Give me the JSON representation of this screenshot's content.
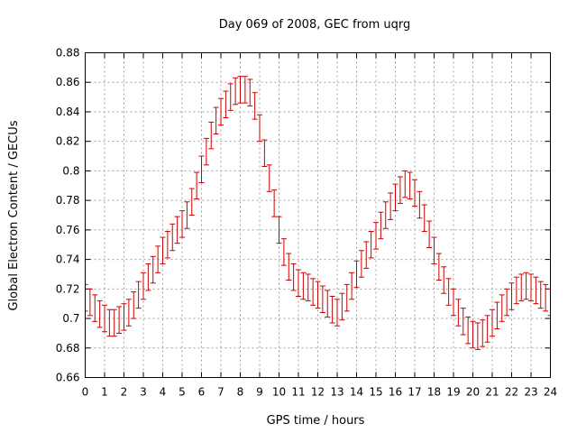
{
  "chart_data": {
    "type": "scatter",
    "title": "Day 069 of 2008, GEC from uqrg",
    "xlabel": "GPS time / hours",
    "ylabel": "Global Electron Content / GECUs",
    "xlim": [
      0,
      24
    ],
    "ylim": [
      0.66,
      0.88
    ],
    "xticks": [
      0,
      1,
      2,
      3,
      4,
      5,
      6,
      7,
      8,
      9,
      10,
      11,
      12,
      13,
      14,
      15,
      16,
      17,
      18,
      19,
      20,
      21,
      22,
      23,
      24
    ],
    "xtick_labels": [
      "0",
      "1",
      "2",
      "3",
      "4",
      "5",
      "6",
      "7",
      "8",
      "9",
      "10",
      "11",
      "12",
      "13",
      "14",
      "15",
      "16",
      "17",
      "18",
      "19",
      "20",
      "21",
      "22",
      "23",
      "24"
    ],
    "yticks": [
      0.66,
      0.68,
      0.7,
      0.72,
      0.74,
      0.76,
      0.78,
      0.8,
      0.82,
      0.84,
      0.86,
      0.88
    ],
    "ytick_labels": [
      "0.66",
      "0.68",
      "0.7",
      "0.72",
      "0.74",
      "0.76",
      "0.78",
      "0.8",
      "0.82",
      "0.84",
      "0.86",
      "0.88"
    ],
    "grid": true,
    "color": "#cc0000",
    "series": [
      {
        "name": "GEC",
        "error": 0.009,
        "x": [
          0,
          0.25,
          0.5,
          0.75,
          1,
          1.25,
          1.5,
          1.75,
          2,
          2.25,
          2.5,
          2.75,
          3,
          3.25,
          3.5,
          3.75,
          4,
          4.25,
          4.5,
          4.75,
          5,
          5.25,
          5.5,
          5.75,
          6,
          6.25,
          6.5,
          6.75,
          7,
          7.25,
          7.5,
          7.75,
          8,
          8.25,
          8.5,
          8.75,
          9,
          9.25,
          9.5,
          9.75,
          10,
          10.25,
          10.5,
          10.75,
          11,
          11.25,
          11.5,
          11.75,
          12,
          12.25,
          12.5,
          12.75,
          13,
          13.25,
          13.5,
          13.75,
          14,
          14.25,
          14.5,
          14.75,
          15,
          15.25,
          15.5,
          15.75,
          16,
          16.25,
          16.5,
          16.75,
          17,
          17.25,
          17.5,
          17.75,
          18,
          18.25,
          18.5,
          18.75,
          19,
          19.25,
          19.5,
          19.75,
          20,
          20.25,
          20.5,
          20.75,
          21,
          21.25,
          21.5,
          21.75,
          22,
          22.25,
          22.5,
          22.75,
          23,
          23.25,
          23.5,
          23.75,
          24
        ],
        "y": [
          0.714,
          0.711,
          0.707,
          0.703,
          0.7,
          0.697,
          0.697,
          0.699,
          0.701,
          0.704,
          0.709,
          0.716,
          0.722,
          0.728,
          0.733,
          0.74,
          0.746,
          0.75,
          0.755,
          0.76,
          0.764,
          0.77,
          0.779,
          0.79,
          0.801,
          0.813,
          0.824,
          0.834,
          0.84,
          0.845,
          0.85,
          0.854,
          0.855,
          0.855,
          0.853,
          0.844,
          0.829,
          0.812,
          0.795,
          0.778,
          0.76,
          0.745,
          0.735,
          0.728,
          0.724,
          0.722,
          0.721,
          0.718,
          0.716,
          0.713,
          0.71,
          0.706,
          0.704,
          0.708,
          0.714,
          0.722,
          0.73,
          0.737,
          0.743,
          0.75,
          0.756,
          0.763,
          0.77,
          0.776,
          0.782,
          0.787,
          0.791,
          0.79,
          0.785,
          0.777,
          0.768,
          0.757,
          0.746,
          0.735,
          0.726,
          0.718,
          0.711,
          0.704,
          0.698,
          0.692,
          0.689,
          0.688,
          0.69,
          0.693,
          0.697,
          0.702,
          0.707,
          0.711,
          0.715,
          0.719,
          0.721,
          0.722,
          0.721,
          0.719,
          0.716,
          0.714,
          0.711
        ]
      }
    ]
  }
}
